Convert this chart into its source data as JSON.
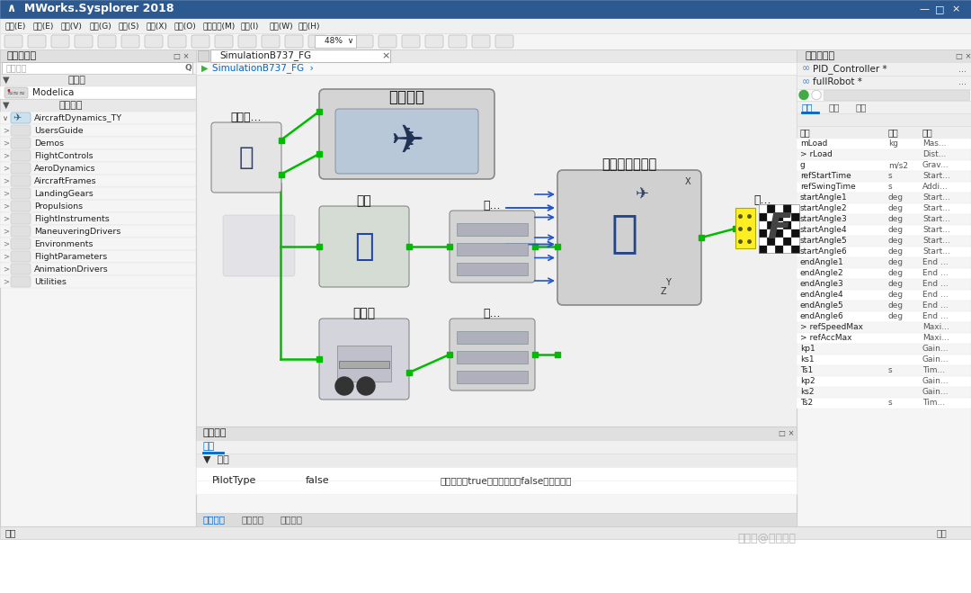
{
  "title": "MWorks.Sysplorer 2018",
  "title_bar_color": "#2b5990",
  "menu_bar_color": "#f0f0f0",
  "toolbar_color": "#f5f5f5",
  "bg_color": "#ffffff",
  "grid_color": "#e0e0e0",
  "left_panel_bg": "#f5f5f5",
  "right_panel_bg": "#f5f5f5",
  "center_bg": "#f0f0f0",
  "green_line": "#00bb00",
  "blue_arrow": "#2255cc",
  "model_panel_title": "模型浏览器",
  "sim_panel_title": "仿真浏览器",
  "tab_title": "SimulationB737_FG",
  "breadcrumb": "SimulationB737_FG",
  "component_params_title": "组件参数",
  "component_params_tab1": "常规",
  "component_params_tab2": "组件参数",
  "component_params_tab3": "命令窗口",
  "component_params_tab4": "组件变量",
  "status_bar": "就绪",
  "search_placeholder": "查找模型",
  "model_lib_title": "模型库",
  "user_model_title": "用户模型",
  "watermark": "搜狐号@同元软控",
  "model_items": [
    {
      "name": "Modelica"
    },
    {
      "name": "AircraftDynamics_TY"
    },
    {
      "name": "UsersGuide"
    },
    {
      "name": "Demos"
    },
    {
      "name": "FlightControls"
    },
    {
      "name": "AeroDynamics"
    },
    {
      "name": "AircraftFrames"
    },
    {
      "name": "LandingGears"
    },
    {
      "name": "Propulsions"
    },
    {
      "name": "FlightInstruments"
    },
    {
      "name": "ManeuveringDrivers"
    },
    {
      "name": "Environments"
    },
    {
      "name": "FlightParameters"
    },
    {
      "name": "AnimationDrivers"
    },
    {
      "name": "Utilities"
    }
  ],
  "right_items": [
    {
      "name": "PID_Controller *"
    },
    {
      "name": "fullRobot *"
    }
  ],
  "right_tabs": [
    "变量",
    "参数",
    "设置"
  ],
  "right_table_headers": [
    "名字",
    "单位",
    "描述"
  ],
  "right_table_rows": [
    [
      "mLoad",
      "kg",
      "Mas..."
    ],
    [
      "> rLoad",
      "",
      "Dist..."
    ],
    [
      "g",
      "m/s2",
      "Grav..."
    ],
    [
      "refStartTime",
      "s",
      "Start..."
    ],
    [
      "refSwingTime",
      "s",
      "Addi..."
    ],
    [
      "startAngle1",
      "deg",
      "Start..."
    ],
    [
      "startAngle2",
      "deg",
      "Start..."
    ],
    [
      "startAngle3",
      "deg",
      "Start..."
    ],
    [
      "startAngle4",
      "deg",
      "Start..."
    ],
    [
      "startAngle5",
      "deg",
      "Start..."
    ],
    [
      "startAngle6",
      "deg",
      "Start..."
    ],
    [
      "endAngle1",
      "deg",
      "End ..."
    ],
    [
      "endAngle2",
      "deg",
      "End ..."
    ],
    [
      "endAngle3",
      "deg",
      "End ..."
    ],
    [
      "endAngle4",
      "deg",
      "End ..."
    ],
    [
      "endAngle5",
      "deg",
      "End ..."
    ],
    [
      "endAngle6",
      "deg",
      "End ..."
    ],
    [
      "> refSpeedMax",
      "",
      "Maxi..."
    ],
    [
      "> refAccMax",
      "",
      "Maxi..."
    ],
    [
      "kp1",
      "",
      "Gain..."
    ],
    [
      "ks1",
      "",
      "Gain..."
    ],
    [
      "Ts1",
      "s",
      "Tim..."
    ],
    [
      "kp2",
      "",
      "Gain..."
    ],
    [
      "ks2",
      "",
      "Gain..."
    ],
    [
      "Ts2",
      "s",
      "Tim..."
    ]
  ],
  "param_row": [
    "PilotType",
    "false",
    "指令类型，true为手动操纵、false为自动操纵"
  ],
  "diagram_labels": {
    "flight_control": "飞行控制",
    "auto_pilot": "自动驾...",
    "environment": "环境",
    "landing_gear": "起落架",
    "engine1": "涡...",
    "engine2": "涡...",
    "aircraft_body": "飞机本体及气动",
    "visual": "视..."
  }
}
